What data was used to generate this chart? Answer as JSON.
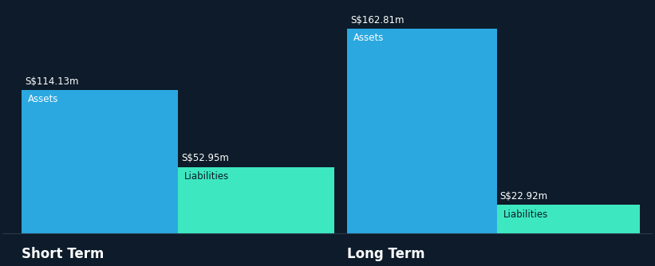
{
  "background_color": "#0d1b2a",
  "bar_color_assets": "#2ba8e0",
  "bar_color_liabilities": "#3de8c0",
  "text_color_white": "#ffffff",
  "text_color_dark": "#0d1b2a",
  "groups": [
    {
      "label": "Short Term",
      "assets_value": 114.13,
      "liabilities_value": 52.95,
      "assets_label": "S$114.13m",
      "liabilities_label": "S$52.95m"
    },
    {
      "label": "Long Term",
      "assets_value": 162.81,
      "liabilities_value": 22.92,
      "assets_label": "S$162.81m",
      "liabilities_label": "S$22.92m"
    }
  ],
  "max_value": 175,
  "value_label_fontsize": 8.5,
  "inner_label_fontsize": 8.5,
  "group_label_fontsize": 12
}
